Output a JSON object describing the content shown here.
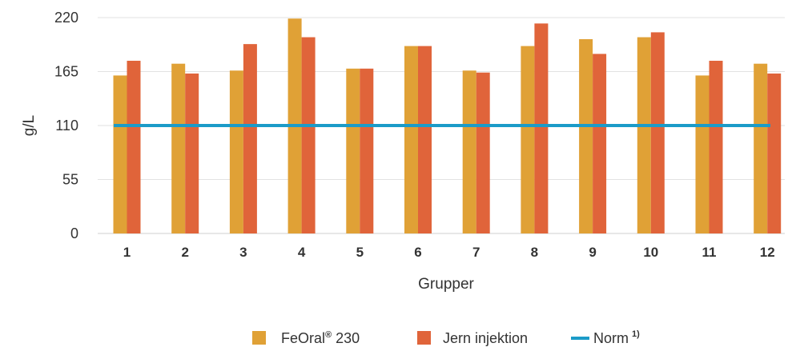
{
  "chart_data": {
    "type": "bar",
    "title": "",
    "xlabel": "Grupper",
    "ylabel": "g/L",
    "ylim": [
      0,
      220
    ],
    "yticks": [
      "0",
      "55",
      "110",
      "165",
      "220"
    ],
    "grid": "horizontal",
    "legend_position": "bottom",
    "categories": [
      "1",
      "2",
      "3",
      "4",
      "5",
      "6",
      "7",
      "8",
      "9",
      "10",
      "11",
      "12"
    ],
    "series": [
      {
        "name": "FeOral",
        "name_sup": "®",
        "name_suffix": " 230",
        "color": "#e0a136",
        "values": [
          161,
          173,
          166,
          219,
          168,
          191,
          166,
          191,
          198,
          200,
          161,
          173
        ]
      },
      {
        "name": "Jern injektion",
        "color": "#e0643a",
        "values": [
          176,
          163,
          193,
          200,
          168,
          191,
          164,
          214,
          183,
          205,
          176,
          163
        ]
      }
    ],
    "reference_line": {
      "name": "Norm",
      "name_sup": "1)",
      "value": 110,
      "color": "#1b9bc8"
    }
  }
}
